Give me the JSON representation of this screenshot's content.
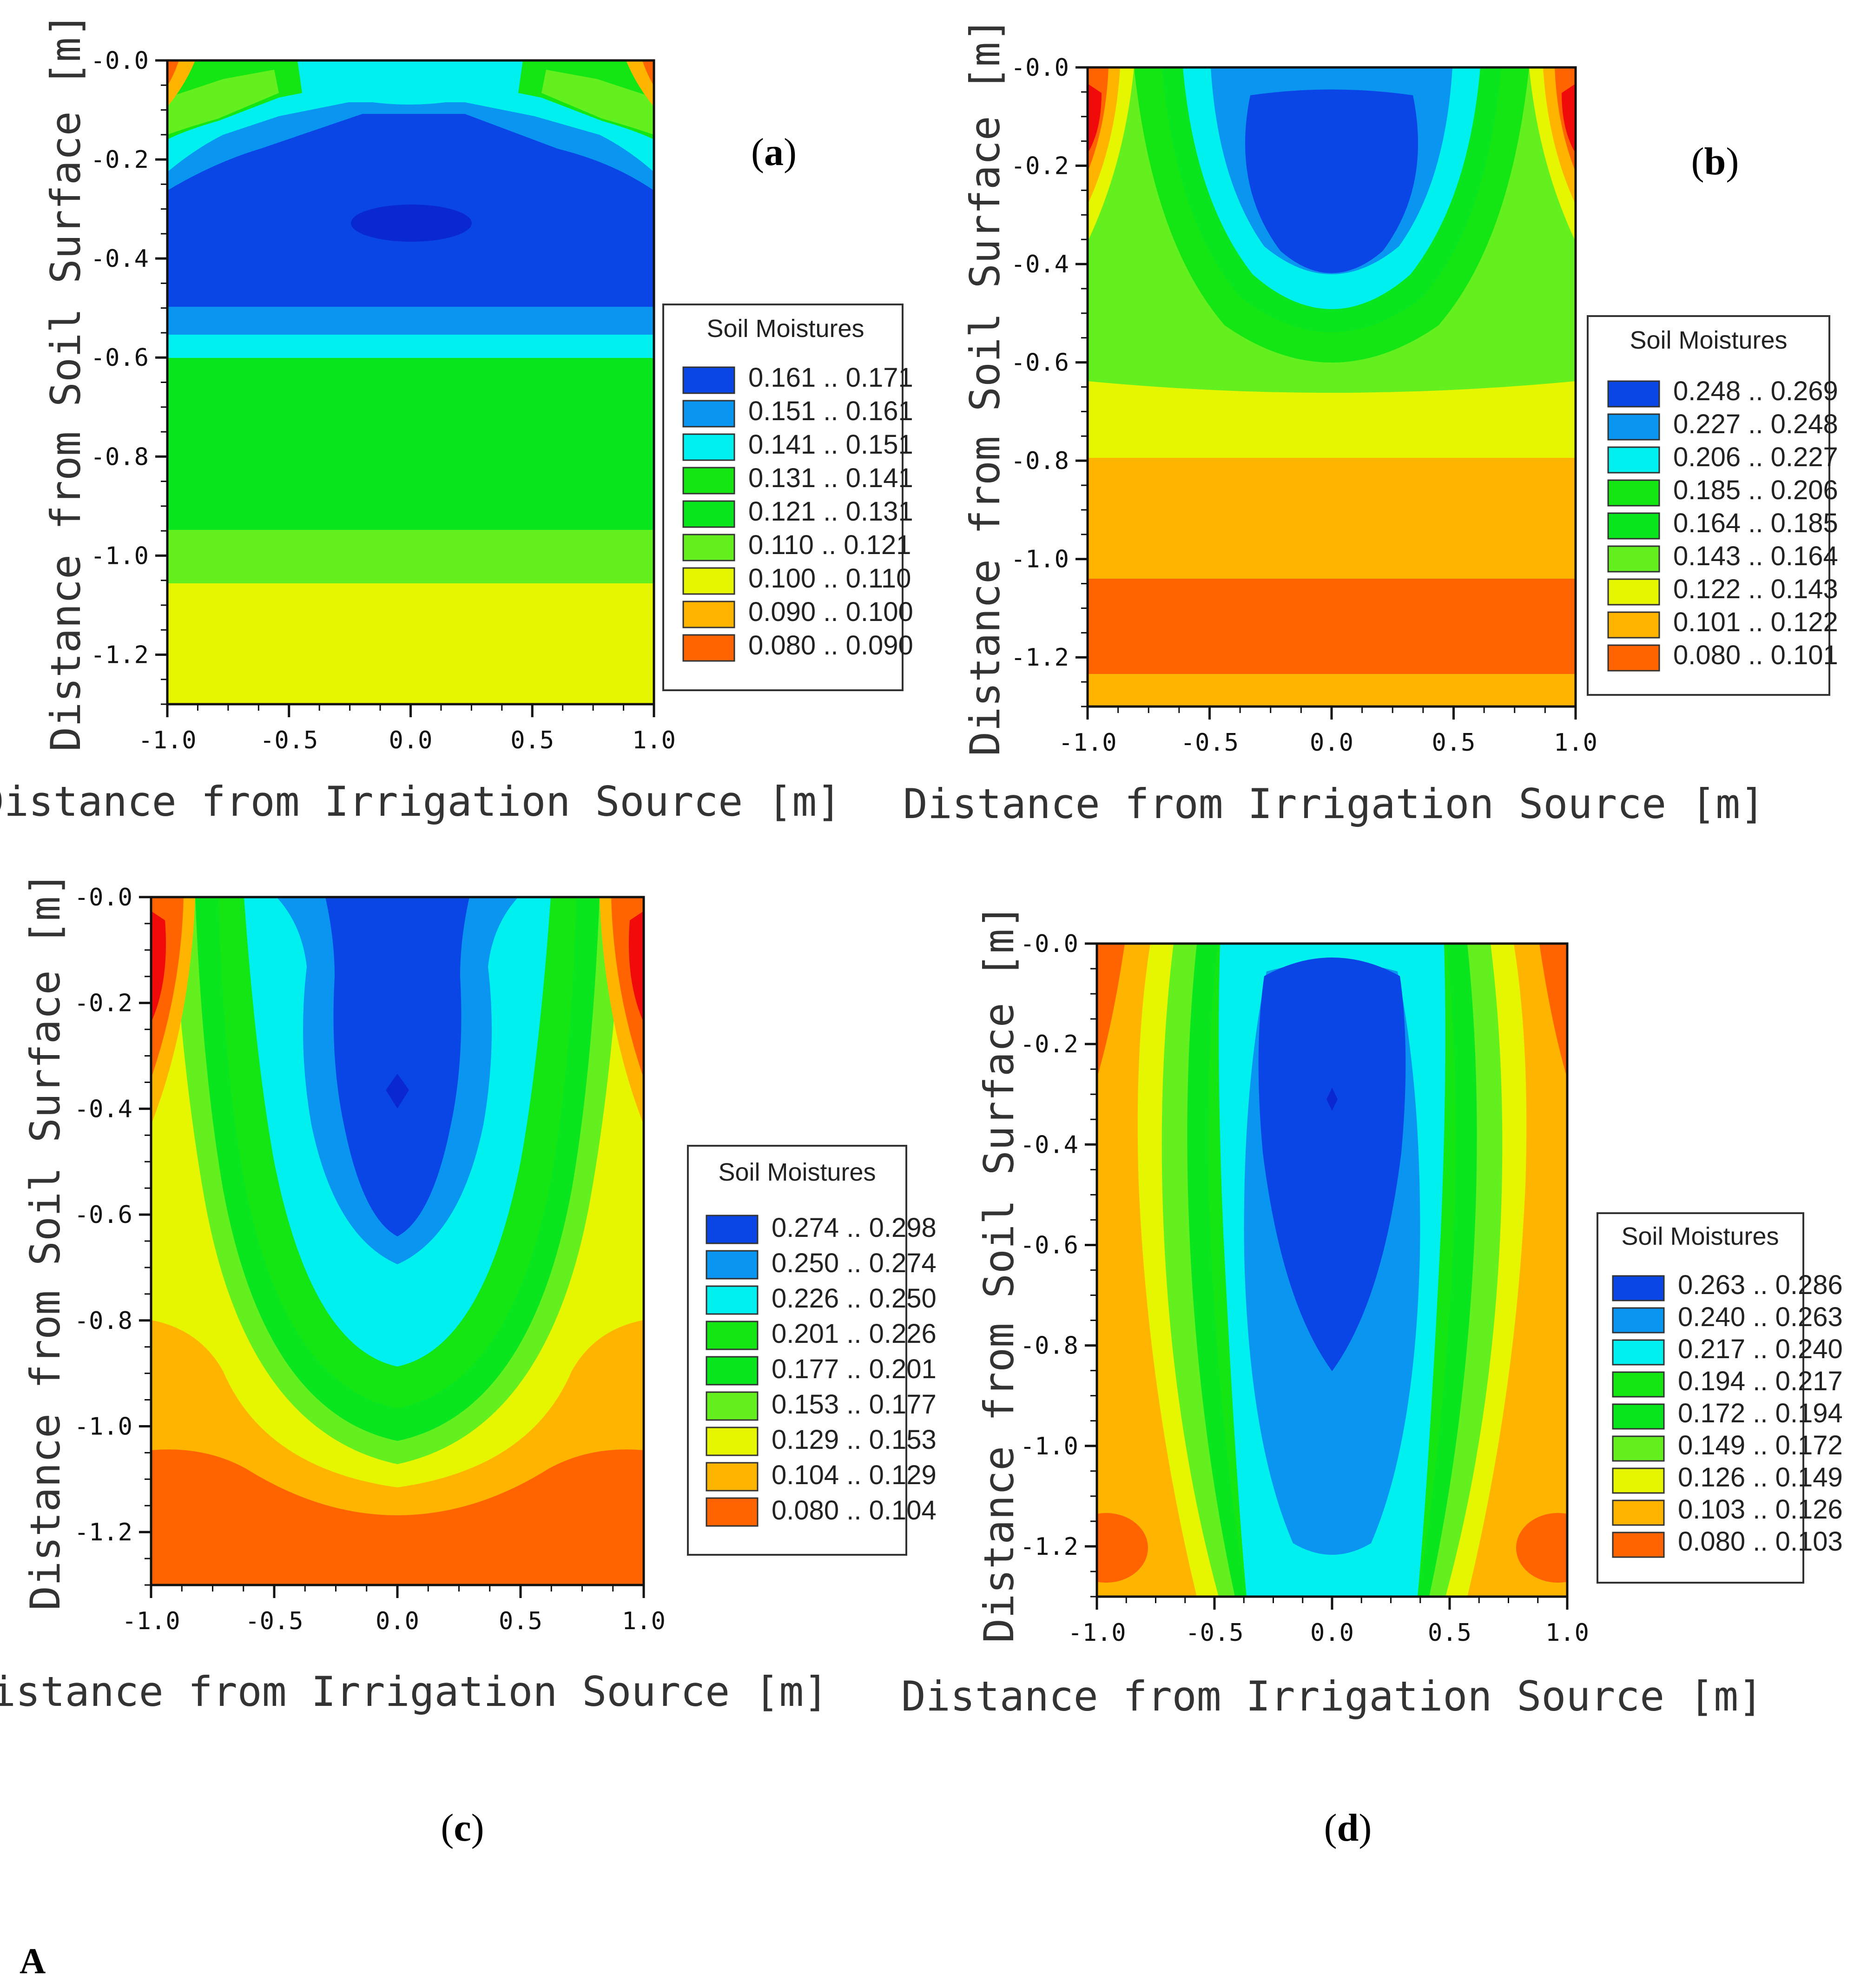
{
  "figure_label": "A",
  "chart_data": [
    {
      "type": "heatmap",
      "panel": "(a)",
      "panel_letter": "a",
      "xlabel": "Distance from Irrigation Source [m]",
      "ylabel": "Distance from Soil Surface [m]",
      "xlim": [
        -1.0,
        1.0
      ],
      "ylim": [
        -1.3,
        0.0
      ],
      "xticks": [
        "-1.0",
        "-0.5",
        "0.0",
        "0.5",
        "1.0"
      ],
      "yticks": [
        "-0.0",
        "-0.2",
        "-0.4",
        "-0.6",
        "-0.8",
        "-1.0",
        "-1.2"
      ],
      "legend_title": "Soil Moistures",
      "legend": [
        "0.161 .. 0.171",
        "0.151 .. 0.161",
        "0.141 .. 0.151",
        "0.131 .. 0.141",
        "0.121 .. 0.131",
        "0.110 .. 0.121",
        "0.100 .. 0.110",
        "0.090 .. 0.100",
        "0.080 .. 0.090"
      ]
    },
    {
      "type": "heatmap",
      "panel": "(b)",
      "panel_letter": "b",
      "xlabel": "Distance from Irrigation Source [m]",
      "ylabel": "Distance from Soil Surface [m]",
      "xlim": [
        -1.0,
        1.0
      ],
      "ylim": [
        -1.3,
        0.0
      ],
      "xticks": [
        "-1.0",
        "-0.5",
        "0.0",
        "0.5",
        "1.0"
      ],
      "yticks": [
        "-0.0",
        "-0.2",
        "-0.4",
        "-0.6",
        "-0.8",
        "-1.0",
        "-1.2"
      ],
      "legend_title": "Soil Moistures",
      "legend": [
        "0.248 .. 0.269",
        "0.227 .. 0.248",
        "0.206 .. 0.227",
        "0.185 .. 0.206",
        "0.164 .. 0.185",
        "0.143 .. 0.164",
        "0.122 .. 0.143",
        "0.101 .. 0.122",
        "0.080 .. 0.101"
      ]
    },
    {
      "type": "heatmap",
      "panel": "(c)",
      "panel_letter": "c",
      "xlabel": "Distance from Irrigation Source [m]",
      "ylabel": "Distance from Soil Surface [m]",
      "xlim": [
        -1.0,
        1.0
      ],
      "ylim": [
        -1.3,
        0.0
      ],
      "xticks": [
        "-1.0",
        "-0.5",
        "0.0",
        "0.5",
        "1.0"
      ],
      "yticks": [
        "-0.0",
        "-0.2",
        "-0.4",
        "-0.6",
        "-0.8",
        "-1.0",
        "-1.2"
      ],
      "legend_title": "Soil Moistures",
      "legend": [
        "0.274 .. 0.298",
        "0.250 .. 0.274",
        "0.226 .. 0.250",
        "0.201 .. 0.226",
        "0.177 .. 0.201",
        "0.153 .. 0.177",
        "0.129 .. 0.153",
        "0.104 .. 0.129",
        "0.080 .. 0.104"
      ]
    },
    {
      "type": "heatmap",
      "panel": "(d)",
      "panel_letter": "d",
      "xlabel": "Distance from Irrigation Source [m]",
      "ylabel": "Distance from Soil Surface [m]",
      "xlim": [
        -1.0,
        1.0
      ],
      "ylim": [
        -1.3,
        0.0
      ],
      "xticks": [
        "-1.0",
        "-0.5",
        "0.0",
        "0.5",
        "1.0"
      ],
      "yticks": [
        "-0.0",
        "-0.2",
        "-0.4",
        "-0.6",
        "-0.8",
        "-1.0",
        "-1.2"
      ],
      "legend_title": "Soil Moistures",
      "legend": [
        "0.263 .. 0.286",
        "0.240 .. 0.263",
        "0.217 .. 0.240",
        "0.194 .. 0.217",
        "0.172 .. 0.194",
        "0.149 .. 0.172",
        "0.126 .. 0.149",
        "0.103 .. 0.126",
        "0.080 .. 0.103"
      ]
    }
  ],
  "colors": {
    "class_1": "#0a46e6",
    "class_2": "#0a96f0",
    "class_3": "#00f0f0",
    "class_4": "#14e614",
    "class_5": "#0ae61e",
    "class_6": "#64f01e",
    "class_7": "#e6f500",
    "class_8": "#ffb400",
    "class_9": "#ff6400",
    "hot": "#f00a0a",
    "axis": "#111111"
  }
}
